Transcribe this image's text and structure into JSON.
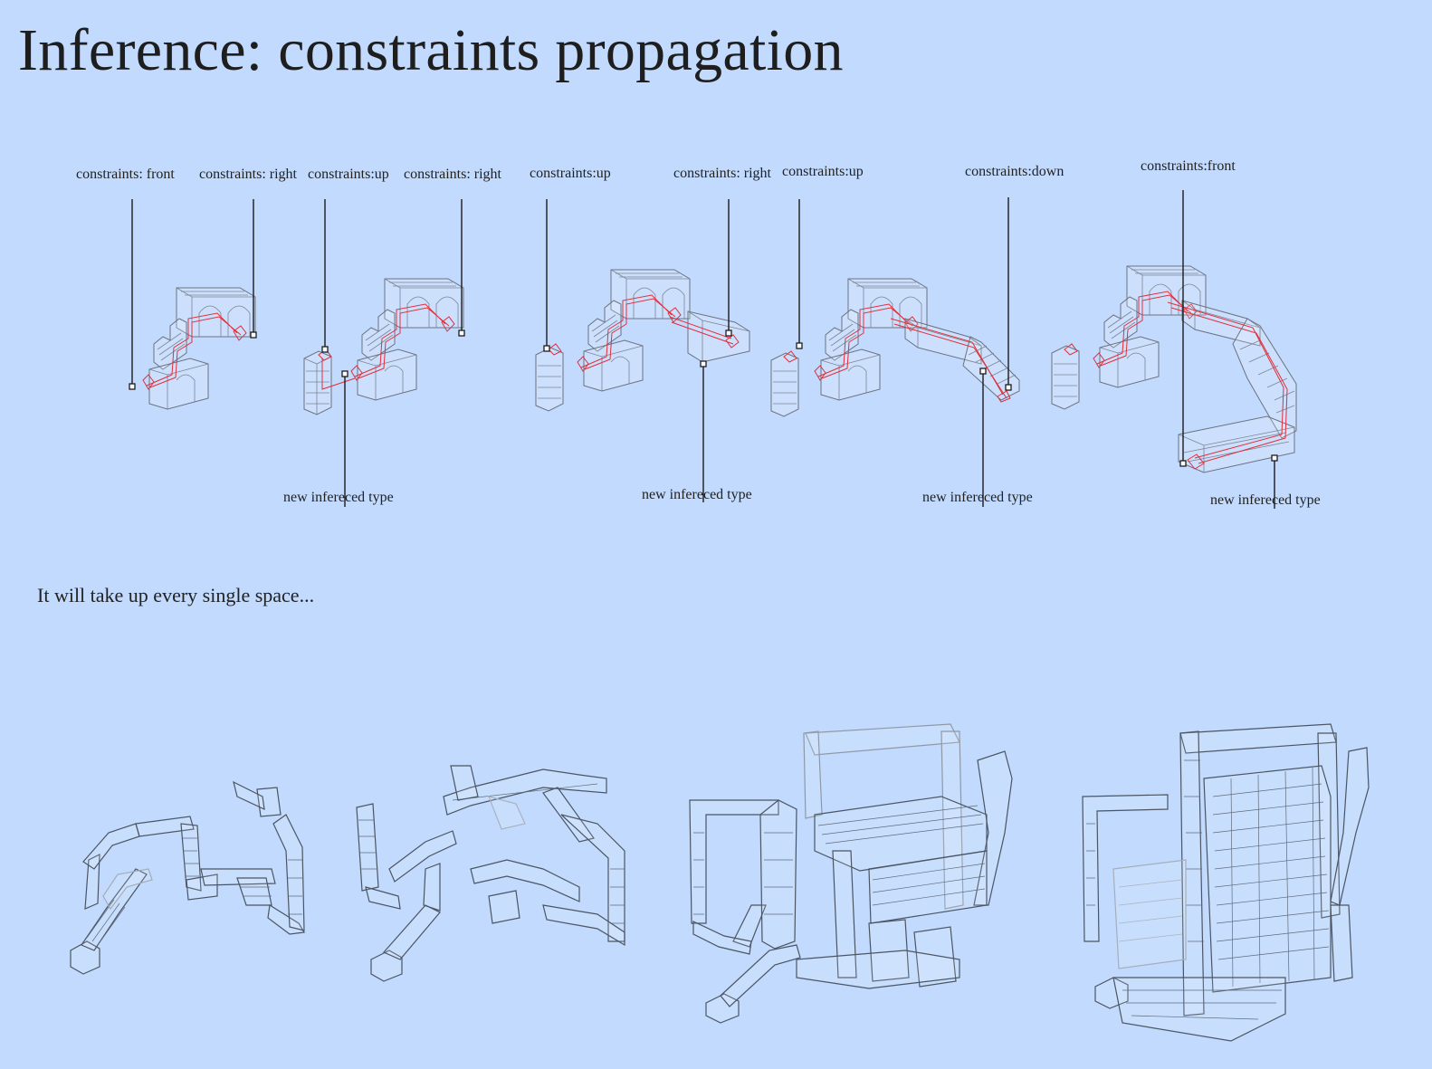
{
  "title": "Inference: constraints propagation",
  "top_labels": {
    "l1": "constraints: front",
    "l2": "constraints: right",
    "l3": "constraints:up",
    "l4": "constraints: right",
    "l5": "constraints:up",
    "l6": "constraints: right",
    "l7": "constraints:up",
    "l8": "constraints:down",
    "l9": "constraints:front"
  },
  "bottom_labels": {
    "b1": "new infereced type",
    "b2": "new infereced type",
    "b3": "new infereced type",
    "b4": "new infereced type"
  },
  "caption": "It will take up every single space..."
}
